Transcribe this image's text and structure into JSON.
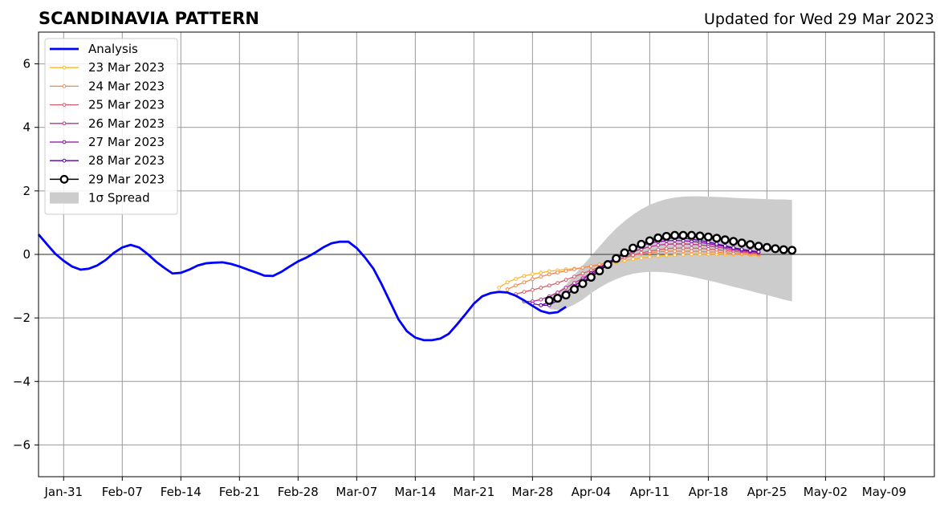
{
  "chart_data": {
    "type": "line",
    "title": "SCANDINAVIA PATTERN",
    "subtitle": "Updated for Wed 29 Mar 2023",
    "xlabel": "",
    "ylabel": "",
    "xlim": [
      "2023-01-28",
      "2023-05-15"
    ],
    "ylim": [
      -7,
      7
    ],
    "grid": true,
    "legend_position": "top-left",
    "x_ticks": [
      {
        "date": "2023-01-31",
        "label": "Jan-31"
      },
      {
        "date": "2023-02-07",
        "label": "Feb-07"
      },
      {
        "date": "2023-02-14",
        "label": "Feb-14"
      },
      {
        "date": "2023-02-21",
        "label": "Feb-21"
      },
      {
        "date": "2023-02-28",
        "label": "Feb-28"
      },
      {
        "date": "2023-03-07",
        "label": "Mar-07"
      },
      {
        "date": "2023-03-14",
        "label": "Mar-14"
      },
      {
        "date": "2023-03-21",
        "label": "Mar-21"
      },
      {
        "date": "2023-03-28",
        "label": "Mar-28"
      },
      {
        "date": "2023-04-04",
        "label": "Apr-04"
      },
      {
        "date": "2023-04-11",
        "label": "Apr-11"
      },
      {
        "date": "2023-04-18",
        "label": "Apr-18"
      },
      {
        "date": "2023-04-25",
        "label": "Apr-25"
      },
      {
        "date": "2023-05-02",
        "label": "May-02"
      },
      {
        "date": "2023-05-09",
        "label": "May-09"
      }
    ],
    "y_ticks": [
      {
        "value": 6,
        "label": "6"
      },
      {
        "value": 4,
        "label": "4"
      },
      {
        "value": 2,
        "label": "2"
      },
      {
        "value": 0,
        "label": "0"
      },
      {
        "value": -2,
        "label": "−2"
      },
      {
        "value": -4,
        "label": "−4"
      },
      {
        "value": -6,
        "label": "−6"
      }
    ],
    "analysis": {
      "name": "Analysis",
      "color": "#0000ff",
      "start": "2023-01-28",
      "values": [
        0.63,
        0.32,
        0.02,
        -0.2,
        -0.38,
        -0.48,
        -0.45,
        -0.35,
        -0.18,
        0.05,
        0.22,
        0.3,
        0.22,
        0.02,
        -0.22,
        -0.42,
        -0.6,
        -0.58,
        -0.48,
        -0.35,
        -0.28,
        -0.26,
        -0.25,
        -0.3,
        -0.38,
        -0.48,
        -0.57,
        -0.67,
        -0.68,
        -0.55,
        -0.38,
        -0.22,
        -0.1,
        0.05,
        0.22,
        0.35,
        0.4,
        0.4,
        0.2,
        -0.1,
        -0.45,
        -0.95,
        -1.5,
        -2.05,
        -2.42,
        -2.62,
        -2.7,
        -2.7,
        -2.65,
        -2.5,
        -2.2,
        -1.88,
        -1.55,
        -1.32,
        -1.22,
        -1.18,
        -1.2,
        -1.3,
        -1.45,
        -1.62,
        -1.78,
        -1.85,
        -1.82,
        -1.65
      ]
    },
    "forecasts": [
      {
        "name": "23 Mar 2023",
        "color": "#fdb42f",
        "start": "2023-03-24",
        "values": [
          -1.05,
          -0.88,
          -0.77,
          -0.68,
          -0.62,
          -0.58,
          -0.53,
          -0.5,
          -0.47,
          -0.45,
          -0.42,
          -0.38,
          -0.35,
          -0.3,
          -0.25,
          -0.2,
          -0.15,
          -0.12,
          -0.08,
          -0.05,
          -0.03,
          -0.02,
          -0.01,
          0.0,
          0.0,
          0.0,
          0.0,
          0.0,
          0.0,
          0.0,
          -0.02,
          -0.03
        ]
      },
      {
        "name": "24 Mar 2023",
        "color": "#f48849",
        "start": "2023-03-25",
        "values": [
          -1.1,
          -0.98,
          -0.88,
          -0.78,
          -0.7,
          -0.63,
          -0.57,
          -0.52,
          -0.47,
          -0.42,
          -0.37,
          -0.32,
          -0.25,
          -0.18,
          -0.1,
          -0.04,
          0.02,
          0.05,
          0.08,
          0.1,
          0.1,
          0.1,
          0.1,
          0.09,
          0.08,
          0.07,
          0.05,
          0.03,
          0.02,
          0.01,
          0.0
        ]
      },
      {
        "name": "25 Mar 2023",
        "color": "#db5c68",
        "start": "2023-03-26",
        "values": [
          -1.25,
          -1.18,
          -1.12,
          -1.05,
          -0.98,
          -0.9,
          -0.8,
          -0.7,
          -0.6,
          -0.5,
          -0.4,
          -0.3,
          -0.2,
          -0.1,
          -0.02,
          0.05,
          0.1,
          0.15,
          0.18,
          0.2,
          0.2,
          0.2,
          0.19,
          0.17,
          0.15,
          0.12,
          0.1,
          0.07,
          0.05,
          0.03
        ]
      },
      {
        "name": "26 Mar 2023",
        "color": "#b83289",
        "start": "2023-03-27",
        "values": [
          -1.48,
          -1.48,
          -1.42,
          -1.32,
          -1.2,
          -1.05,
          -0.9,
          -0.75,
          -0.58,
          -0.42,
          -0.28,
          -0.15,
          -0.02,
          0.08,
          0.17,
          0.24,
          0.29,
          0.32,
          0.33,
          0.33,
          0.32,
          0.3,
          0.27,
          0.23,
          0.19,
          0.15,
          0.11,
          0.07,
          0.04
        ]
      },
      {
        "name": "27 Mar 2023",
        "color": "#8b0aa5",
        "start": "2023-03-28",
        "values": [
          -1.55,
          -1.6,
          -1.5,
          -1.35,
          -1.2,
          -1.0,
          -0.8,
          -0.6,
          -0.42,
          -0.25,
          -0.1,
          0.05,
          0.17,
          0.27,
          0.35,
          0.4,
          0.43,
          0.44,
          0.43,
          0.41,
          0.38,
          0.34,
          0.29,
          0.24,
          0.19,
          0.14,
          0.1,
          0.07
        ]
      },
      {
        "name": "28 Mar 2023",
        "color": "#5302a3",
        "start": "2023-03-29",
        "values": [
          -1.6,
          -1.6,
          -1.45,
          -1.28,
          -1.08,
          -0.88,
          -0.66,
          -0.46,
          -0.28,
          -0.1,
          0.05,
          0.18,
          0.3,
          0.4,
          0.46,
          0.5,
          0.52,
          0.51,
          0.48,
          0.44,
          0.39,
          0.33,
          0.27,
          0.21,
          0.16,
          0.12,
          0.08
        ]
      }
    ],
    "current": {
      "name": "29 Mar 2023",
      "color": "#000000",
      "start": "2023-03-30",
      "values": [
        -1.45,
        -1.38,
        -1.28,
        -1.1,
        -0.92,
        -0.72,
        -0.52,
        -0.32,
        -0.13,
        0.05,
        0.2,
        0.32,
        0.43,
        0.52,
        0.57,
        0.6,
        0.6,
        0.6,
        0.58,
        0.55,
        0.51,
        0.46,
        0.41,
        0.36,
        0.31,
        0.26,
        0.22,
        0.18,
        0.15,
        0.13
      ]
    },
    "spread": {
      "name": "1σ Spread",
      "color": "#cccccc",
      "start": "2023-03-30",
      "upper": [
        -1.35,
        -1.2,
        -0.95,
        -0.65,
        -0.35,
        -0.05,
        0.25,
        0.55,
        0.82,
        1.05,
        1.25,
        1.42,
        1.56,
        1.66,
        1.74,
        1.79,
        1.82,
        1.83,
        1.83,
        1.82,
        1.81,
        1.8,
        1.78,
        1.77,
        1.76,
        1.75,
        1.74,
        1.73,
        1.73,
        1.72
      ],
      "lower": [
        -1.72,
        -1.75,
        -1.7,
        -1.58,
        -1.42,
        -1.22,
        -1.05,
        -0.9,
        -0.78,
        -0.68,
        -0.61,
        -0.57,
        -0.55,
        -0.55,
        -0.57,
        -0.6,
        -0.65,
        -0.7,
        -0.76,
        -0.82,
        -0.88,
        -0.95,
        -1.02,
        -1.08,
        -1.15,
        -1.22,
        -1.28,
        -1.35,
        -1.42,
        -1.48
      ]
    }
  }
}
